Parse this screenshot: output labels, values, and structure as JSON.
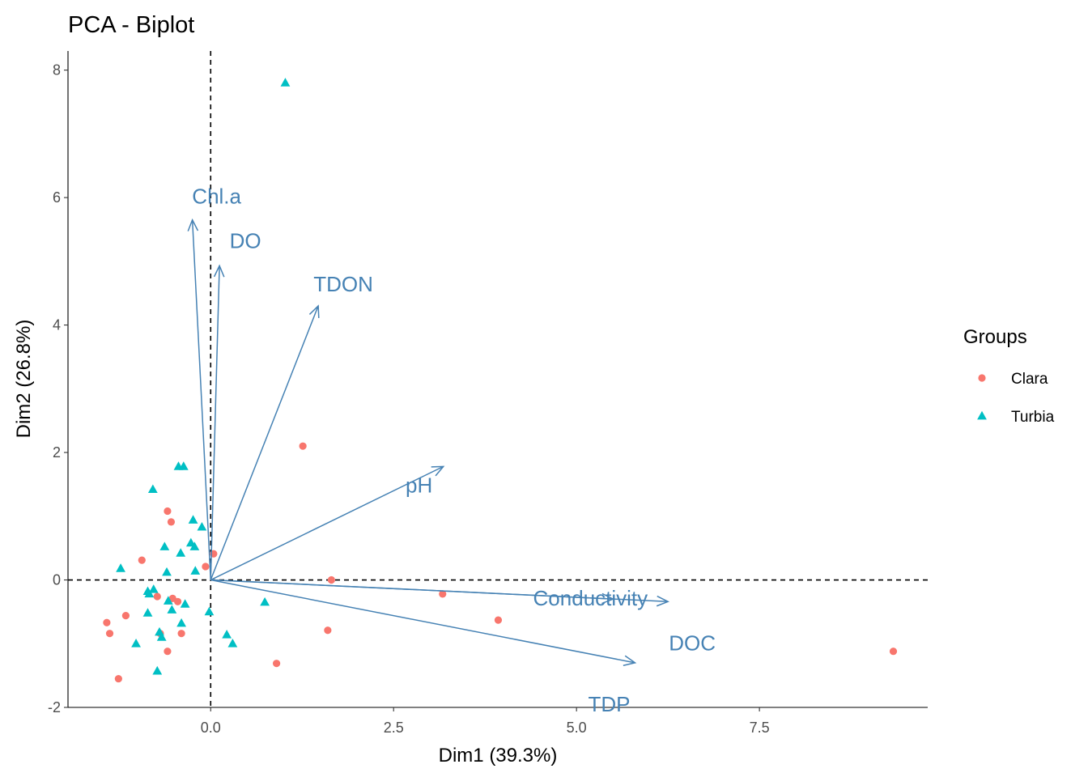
{
  "chart_data": {
    "type": "scatter",
    "title": "PCA - Biplot",
    "xlabel": "Dim1 (39.3%)",
    "ylabel": "Dim2 (26.8%)",
    "xlim": [
      -1.95,
      9.8
    ],
    "ylim": [
      -2.0,
      8.3
    ],
    "x_ticks": [
      0,
      2.5,
      5,
      7.5
    ],
    "x_tick_labels": [
      "0.0",
      "2.5",
      "5.0",
      "7.5"
    ],
    "y_ticks": [
      -2,
      0,
      2,
      4,
      6,
      8
    ],
    "y_tick_labels": [
      "-2",
      "0",
      "2",
      "4",
      "6",
      "8"
    ],
    "grid": false,
    "reference_lines": {
      "x": 0,
      "y": 0,
      "style": "dashed"
    },
    "legend": {
      "title": "Groups",
      "position": "right"
    },
    "series": [
      {
        "name": "Clara",
        "marker": "circle",
        "color": "#F8766D",
        "points": [
          [
            1.26,
            2.1
          ],
          [
            -0.59,
            1.08
          ],
          [
            -0.54,
            0.91
          ],
          [
            -0.94,
            0.31
          ],
          [
            -0.07,
            0.21
          ],
          [
            0.04,
            0.41
          ],
          [
            1.65,
            0.0
          ],
          [
            -0.73,
            -0.26
          ],
          [
            -0.52,
            -0.29
          ],
          [
            -0.45,
            -0.34
          ],
          [
            3.17,
            -0.22
          ],
          [
            -1.42,
            -0.67
          ],
          [
            -1.16,
            -0.56
          ],
          [
            -1.38,
            -0.84
          ],
          [
            -0.69,
            -0.84
          ],
          [
            -0.4,
            -0.84
          ],
          [
            -0.59,
            -1.12
          ],
          [
            1.6,
            -0.79
          ],
          [
            3.93,
            -0.63
          ],
          [
            0.9,
            -1.31
          ],
          [
            -1.26,
            -1.55
          ],
          [
            9.33,
            -1.12
          ]
        ]
      },
      {
        "name": "Turbia",
        "marker": "triangle",
        "color": "#00BFC4",
        "points": [
          [
            1.02,
            7.8
          ],
          [
            -0.44,
            1.78
          ],
          [
            -0.37,
            1.78
          ],
          [
            -0.79,
            1.42
          ],
          [
            -0.24,
            0.94
          ],
          [
            -0.12,
            0.83
          ],
          [
            -0.63,
            0.52
          ],
          [
            -0.27,
            0.58
          ],
          [
            -0.22,
            0.52
          ],
          [
            -0.41,
            0.42
          ],
          [
            -1.23,
            0.18
          ],
          [
            -0.6,
            0.12
          ],
          [
            -0.21,
            0.14
          ],
          [
            -0.86,
            -0.18
          ],
          [
            -0.78,
            -0.15
          ],
          [
            -0.84,
            -0.22
          ],
          [
            -0.58,
            -0.33
          ],
          [
            -0.35,
            -0.38
          ],
          [
            0.74,
            -0.35
          ],
          [
            -0.53,
            -0.47
          ],
          [
            -0.86,
            -0.52
          ],
          [
            -0.02,
            -0.5
          ],
          [
            -0.4,
            -0.68
          ],
          [
            -0.7,
            -0.82
          ],
          [
            -0.67,
            -0.9
          ],
          [
            0.22,
            -0.86
          ],
          [
            -1.02,
            -1.0
          ],
          [
            0.3,
            -1.0
          ],
          [
            -0.73,
            -1.43
          ]
        ]
      }
    ],
    "variables": [
      {
        "name": "Chl.a",
        "x": -0.25,
        "y": 5.65
      },
      {
        "name": "DO",
        "x": 0.12,
        "y": 4.93
      },
      {
        "name": "TDON",
        "x": 1.47,
        "y": 4.3
      },
      {
        "name": "pH",
        "x": 3.18,
        "y": 1.78
      },
      {
        "name": "Conductivity",
        "x": 5.5,
        "y": -0.3
      },
      {
        "name": "DOC",
        "x": 6.25,
        "y": -0.34
      },
      {
        "name": "TDP",
        "x": 5.8,
        "y": -1.3
      }
    ],
    "variable_color": "#4682B4"
  }
}
